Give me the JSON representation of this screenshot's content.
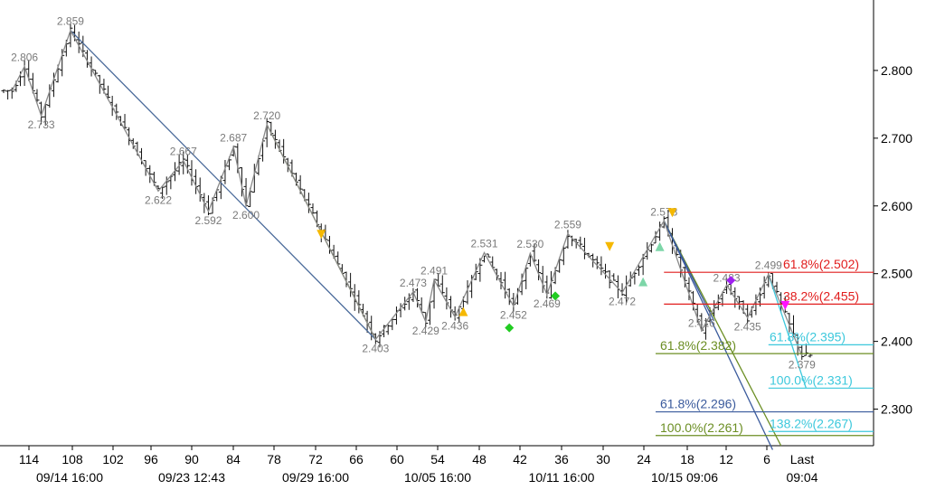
{
  "chart_data": {
    "type": "ohlc",
    "ylim": [
      2.246,
      2.904
    ],
    "y_ticks": [
      "2.800",
      "2.700",
      "2.600",
      "2.500",
      "2.400",
      "2.300"
    ],
    "x_bar_labels": [
      "114",
      "108",
      "102",
      "96",
      "90",
      "84",
      "78",
      "72",
      "66",
      "60",
      "54",
      "48",
      "42",
      "36",
      "30",
      "24",
      "18",
      "12",
      "6",
      "Last"
    ],
    "x_date_labels": [
      "09/14 16:00",
      "09/23 12:43",
      "09/29 16:00",
      "10/05 16:00",
      "10/11 16:00",
      "10/15 09:06",
      "09:04"
    ],
    "swing_labels": [
      {
        "text": "2.859",
        "i": 16,
        "v": 2.859,
        "pos": "above"
      },
      {
        "text": "2.806",
        "i": 5,
        "v": 2.806,
        "pos": "above"
      },
      {
        "text": "2.733",
        "i": 9,
        "v": 2.733,
        "pos": "below"
      },
      {
        "text": "2.622",
        "i": 37,
        "v": 2.622,
        "pos": "below"
      },
      {
        "text": "2.667",
        "i": 43,
        "v": 2.667,
        "pos": "above"
      },
      {
        "text": "2.592",
        "i": 49,
        "v": 2.592,
        "pos": "below"
      },
      {
        "text": "2.687",
        "i": 55,
        "v": 2.687,
        "pos": "above"
      },
      {
        "text": "2.600",
        "i": 58,
        "v": 2.6,
        "pos": "below"
      },
      {
        "text": "2.720",
        "i": 63,
        "v": 2.72,
        "pos": "above"
      },
      {
        "text": "2.403",
        "i": 89,
        "v": 2.403,
        "pos": "below"
      },
      {
        "text": "2.473",
        "i": 98,
        "v": 2.473,
        "pos": "above"
      },
      {
        "text": "2.429",
        "i": 101,
        "v": 2.429,
        "pos": "below"
      },
      {
        "text": "2.491",
        "i": 103,
        "v": 2.491,
        "pos": "above"
      },
      {
        "text": "2.436",
        "i": 108,
        "v": 2.436,
        "pos": "below"
      },
      {
        "text": "2.531",
        "i": 115,
        "v": 2.531,
        "pos": "above"
      },
      {
        "text": "2.452",
        "i": 122,
        "v": 2.452,
        "pos": "below"
      },
      {
        "text": "2.530",
        "i": 126,
        "v": 2.53,
        "pos": "above"
      },
      {
        "text": "2.469",
        "i": 130,
        "v": 2.469,
        "pos": "below"
      },
      {
        "text": "2.559",
        "i": 135,
        "v": 2.559,
        "pos": "above"
      },
      {
        "text": "2.472",
        "i": 148,
        "v": 2.472,
        "pos": "below"
      },
      {
        "text": "2.578",
        "i": 158,
        "v": 2.578,
        "pos": "above"
      },
      {
        "text": "2.435",
        "i": 178,
        "v": 2.435,
        "pos": "below"
      },
      {
        "text": "2.499",
        "i": 183,
        "v": 2.499,
        "pos": "above"
      },
      {
        "text": "2.379",
        "i": 191,
        "v": 2.379,
        "pos": "below"
      }
    ],
    "hidden_swing_labels": [
      {
        "text": "2.416",
        "i": 167,
        "v": 2.416
      },
      {
        "text": "2.483",
        "i": 173,
        "v": 2.483
      }
    ],
    "fib_levels": [
      {
        "label": "61.8%(2.502)",
        "value": 2.502,
        "color": "#e11d1d",
        "start_i": 158
      },
      {
        "label": "38.2%(2.455)",
        "value": 2.455,
        "color": "#e11d1d",
        "start_i": 158
      },
      {
        "label": "61.8%(2.382)",
        "value": 2.382,
        "color": "#6b8e23",
        "start_i": 156
      },
      {
        "label": "61.8%(2.296)",
        "value": 2.296,
        "color": "#3a5a9c",
        "start_i": 156
      },
      {
        "label": "100.0%(2.261)",
        "value": 2.261,
        "color": "#6b8e23",
        "start_i": 156
      },
      {
        "label": "61.8%(2.395)",
        "value": 2.395,
        "color": "#3cc8dc",
        "start_i": 183
      },
      {
        "label": "100.0%(2.331)",
        "value": 2.331,
        "color": "#3cc8dc",
        "start_i": 183
      },
      {
        "label": "138.2%(2.267)",
        "value": 2.267,
        "color": "#3cc8dc",
        "start_i": 183
      }
    ],
    "zigzag": [
      [
        2,
        2.77
      ],
      [
        5,
        2.806
      ],
      [
        9,
        2.733
      ],
      [
        16,
        2.859
      ],
      [
        37,
        2.622
      ],
      [
        43,
        2.667
      ],
      [
        49,
        2.592
      ],
      [
        55,
        2.687
      ],
      [
        58,
        2.6
      ],
      [
        63,
        2.72
      ],
      [
        89,
        2.403
      ],
      [
        98,
        2.473
      ],
      [
        101,
        2.429
      ],
      [
        103,
        2.491
      ],
      [
        108,
        2.436
      ],
      [
        115,
        2.531
      ],
      [
        122,
        2.452
      ],
      [
        126,
        2.53
      ],
      [
        130,
        2.469
      ],
      [
        135,
        2.559
      ],
      [
        148,
        2.472
      ],
      [
        158,
        2.578
      ],
      [
        167,
        2.416
      ],
      [
        173,
        2.483
      ],
      [
        178,
        2.435
      ],
      [
        183,
        2.499
      ],
      [
        191,
        2.379
      ]
    ],
    "trendlines": [
      {
        "from": [
          16,
          2.859
        ],
        "to": [
          89,
          2.403
        ],
        "color": "#4a6a9a"
      },
      {
        "from": [
          63,
          2.72
        ],
        "to": [
          89,
          2.403
        ],
        "color": "#7a8a3a"
      },
      {
        "from": [
          158,
          2.578
        ],
        "to": [
          184,
          2.24
        ],
        "color": "#3a5a9c"
      },
      {
        "from": [
          158,
          2.578
        ],
        "to": [
          186,
          2.246
        ],
        "color": "#6b8e23"
      },
      {
        "from": [
          158,
          2.578
        ],
        "to": [
          170,
          2.43
        ],
        "color": "#3a5a9c"
      },
      {
        "from": [
          183,
          2.499
        ],
        "to": [
          192,
          2.331
        ],
        "color": "#3cc8dc"
      }
    ],
    "markers": [
      {
        "shape": "triangle-down",
        "color": "#f5b800",
        "i": 76,
        "v": 2.558
      },
      {
        "shape": "triangle-up",
        "color": "#f5b800",
        "i": 110,
        "v": 2.444
      },
      {
        "shape": "diamond",
        "color": "#22cc22",
        "i": 121,
        "v": 2.42
      },
      {
        "shape": "diamond",
        "color": "#22cc22",
        "i": 132,
        "v": 2.467
      },
      {
        "shape": "triangle-down",
        "color": "#f5b800",
        "i": 145,
        "v": 2.54
      },
      {
        "shape": "triangle-up",
        "color": "#7dd6a8",
        "i": 153,
        "v": 2.488
      },
      {
        "shape": "triangle-up",
        "color": "#7dd6a8",
        "i": 157,
        "v": 2.54
      },
      {
        "shape": "triangle-down",
        "color": "#f5b800",
        "i": 160,
        "v": 2.59
      },
      {
        "shape": "diamond",
        "color": "#a020f0",
        "i": 174,
        "v": 2.49
      },
      {
        "shape": "triangle-down",
        "color": "#ff10ff",
        "i": 187,
        "v": 2.453
      }
    ]
  }
}
